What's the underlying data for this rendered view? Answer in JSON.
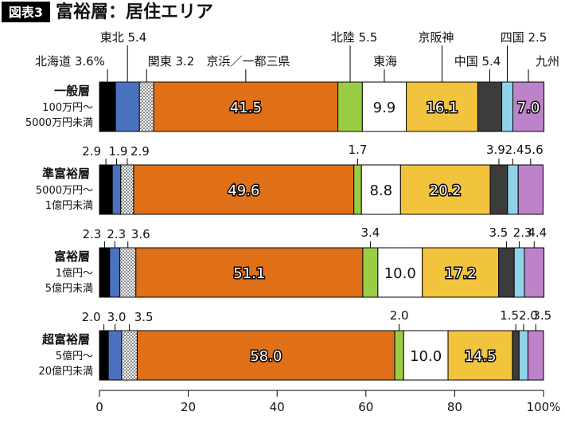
{
  "header": {
    "badge": "図表3",
    "title": "富裕層：居住エリア"
  },
  "colors": {
    "北海道": "#000000",
    "東北": "#4a72c0",
    "関東": "#ffffff",
    "京浜／一都三県": "#e07018",
    "北陸": "#9acd44",
    "東海": "#ffffff",
    "京阪神": "#f2c43e",
    "中国": "#3c3c3c",
    "四国": "#8fd3e8",
    "九州": "#bd82c9"
  },
  "legend_labels": [
    {
      "region": "北海道",
      "text": "北海道 3.6%"
    },
    {
      "region": "東北",
      "text": "東北 5.4"
    },
    {
      "region": "関東",
      "text": "関東 3.2"
    },
    {
      "region": "京浜／一都三県",
      "text": "京浜／一都三県"
    },
    {
      "region": "北陸",
      "text": "北陸 5.5"
    },
    {
      "region": "東海",
      "text": "東海"
    },
    {
      "region": "京阪神",
      "text": "京阪神"
    },
    {
      "region": "中国",
      "text": "中国 5.4"
    },
    {
      "region": "四国",
      "text": "四国 2.5"
    },
    {
      "region": "九州",
      "text": "九州"
    }
  ],
  "chart_data": {
    "type": "bar",
    "orientation": "horizontal",
    "stacked": true,
    "categories": [
      "一般層",
      "準富裕層",
      "富裕層",
      "超富裕層"
    ],
    "category_sublabels": [
      [
        "100万円～",
        "5000万円未満"
      ],
      [
        "5000万円～",
        "1億円未満"
      ],
      [
        "1億円～",
        "5億円未満"
      ],
      [
        "5億円～",
        "20億円未満"
      ]
    ],
    "series": [
      {
        "name": "北海道",
        "values": [
          3.6,
          2.9,
          2.3,
          2.0
        ]
      },
      {
        "name": "東北",
        "values": [
          5.4,
          1.9,
          2.3,
          3.0
        ]
      },
      {
        "name": "関東",
        "values": [
          3.2,
          2.9,
          3.6,
          3.5
        ]
      },
      {
        "name": "京浜／一都三県",
        "values": [
          41.5,
          49.6,
          51.1,
          58.0
        ]
      },
      {
        "name": "北陸",
        "values": [
          5.5,
          1.7,
          3.4,
          2.0
        ]
      },
      {
        "name": "東海",
        "values": [
          9.9,
          8.8,
          10.0,
          10.0
        ]
      },
      {
        "name": "京阪神",
        "values": [
          16.1,
          20.2,
          17.2,
          14.5
        ]
      },
      {
        "name": "中国",
        "values": [
          5.4,
          3.9,
          3.5,
          1.5
        ]
      },
      {
        "name": "四国",
        "values": [
          2.5,
          2.4,
          2.3,
          2.0
        ]
      },
      {
        "name": "九州",
        "values": [
          7.0,
          5.6,
          4.4,
          3.5
        ]
      }
    ],
    "row_value_labels": [
      {},
      {
        "北海道": "2.9",
        "東北": "1.9",
        "関東": "2.9",
        "北陸": "1.7",
        "中国": "3.9",
        "四国": "2.4",
        "九州": "5.6"
      },
      {
        "北海道": "2.3",
        "東北": "2.3",
        "関東": "3.6",
        "北陸": "3.4",
        "中国": "3.5",
        "四国": "2.3",
        "九州": "4.4"
      },
      {
        "北海道": "2.0",
        "東北": "3.0",
        "関東": "3.5",
        "北陸": "2.0",
        "中国": "1.5",
        "四国": "2.0",
        "九州": "3.5"
      }
    ],
    "inside_value_labels": [
      {
        "京浜／一都三県": "41.5",
        "東海": "9.9",
        "京阪神": "16.1",
        "九州": "7.0"
      },
      {
        "京浜／一都三県": "49.6",
        "東海": "8.8",
        "京阪神": "20.2"
      },
      {
        "京浜／一都三県": "51.1",
        "東海": "10.0",
        "京阪神": "17.2"
      },
      {
        "京浜／一都三県": "58.0",
        "東海": "10.0",
        "京阪神": "14.5"
      }
    ],
    "xlim": [
      0,
      100
    ],
    "xticks": [
      0,
      20,
      40,
      60,
      80,
      100
    ],
    "xtick_labels": [
      "0",
      "20",
      "40",
      "60",
      "80",
      "100%"
    ],
    "grid": false
  }
}
